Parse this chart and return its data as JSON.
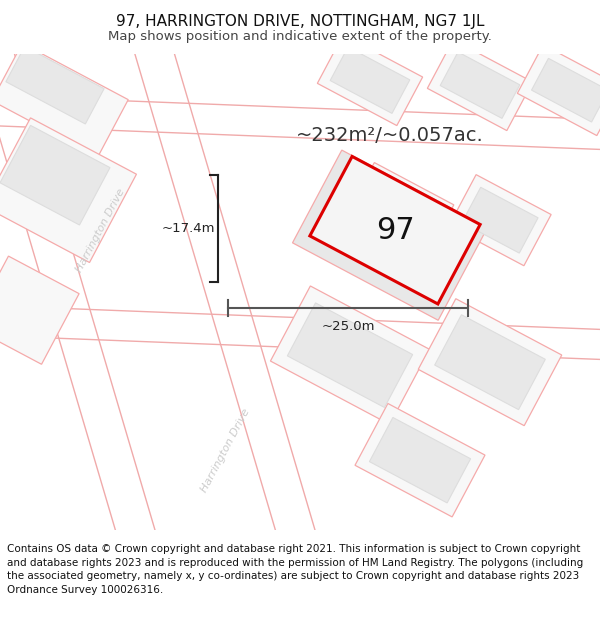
{
  "title": "97, HARRINGTON DRIVE, NOTTINGHAM, NG7 1JL",
  "subtitle": "Map shows position and indicative extent of the property.",
  "area_text": "~232m²/~0.057ac.",
  "dim_width": "~25.0m",
  "dim_height": "~17.4m",
  "property_label": "97",
  "footer": "Contains OS data © Crown copyright and database right 2021. This information is subject to Crown copyright and database rights 2023 and is reproduced with the permission of HM Land Registry. The polygons (including the associated geometry, namely x, y co-ordinates) are subject to Crown copyright and database rights 2023 Ordnance Survey 100026316.",
  "title_fontsize": 11,
  "subtitle_fontsize": 9.5,
  "footer_fontsize": 7.5,
  "map_bg": "#f8f8f8",
  "road_color": "#ffffff",
  "road_edge_color": "#f0aaaa",
  "building_fill": "#e8e8e8",
  "building_edge": "#dddddd",
  "parcel_fill": "#eeeeee",
  "parcel_edge": "#f5aaaa",
  "property_fill": "#f0f0f0",
  "property_stroke": "#dd0000",
  "road_label_color": "#cccccc",
  "dim_color": "#444444",
  "area_text_color": "#333333"
}
